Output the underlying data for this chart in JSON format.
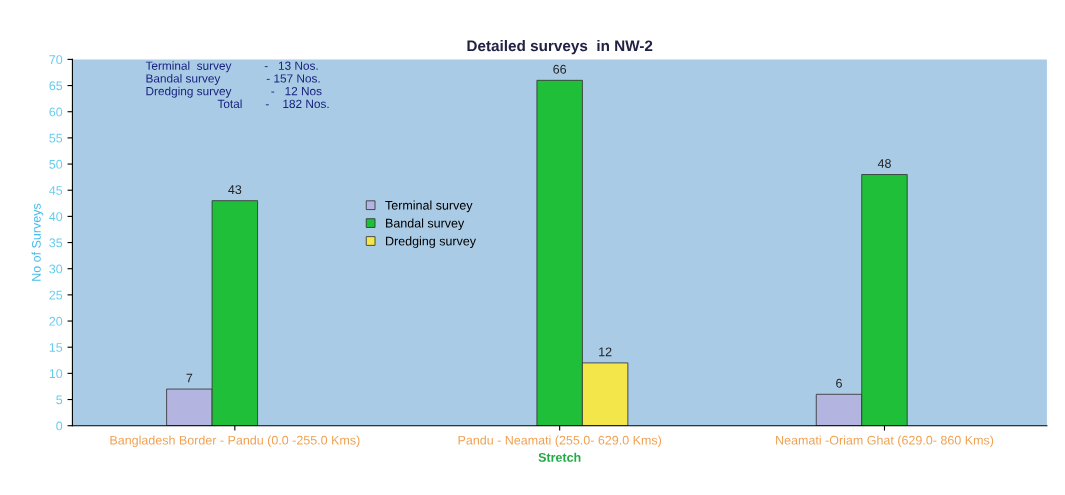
{
  "chart_data": {
    "type": "bar",
    "title": "Detailed surveys  in NW-2",
    "xlabel": "Stretch",
    "ylabel": "No of Surveys",
    "categories": [
      "Bangladesh Border - Pandu (0.0 -255.0 Kms)",
      "Pandu - Neamati (255.0- 629.0 Kms)",
      "Neamati -Oriam Ghat (629.0- 860 Kms)"
    ],
    "series": [
      {
        "name": "Terminal survey",
        "color": "#b4b4e0",
        "values": [
          7,
          null,
          6
        ]
      },
      {
        "name": "Bandal survey",
        "color": "#1fbf3a",
        "values": [
          43,
          66,
          48
        ]
      },
      {
        "name": "Dredging survey",
        "color": "#f2e64a",
        "values": [
          null,
          12,
          null
        ]
      }
    ],
    "ylim": [
      0,
      70
    ],
    "yticks": [
      0,
      5,
      10,
      15,
      20,
      25,
      30,
      35,
      40,
      45,
      50,
      55,
      60,
      65,
      70
    ],
    "data_labels": true,
    "legend": "center left",
    "annotations": [
      "Terminal  survey          -   13 Nos.\nBandal survey              - 157 Nos.\nDredging survey            -   12 Nos\n                      Total       -    182 Nos."
    ]
  }
}
